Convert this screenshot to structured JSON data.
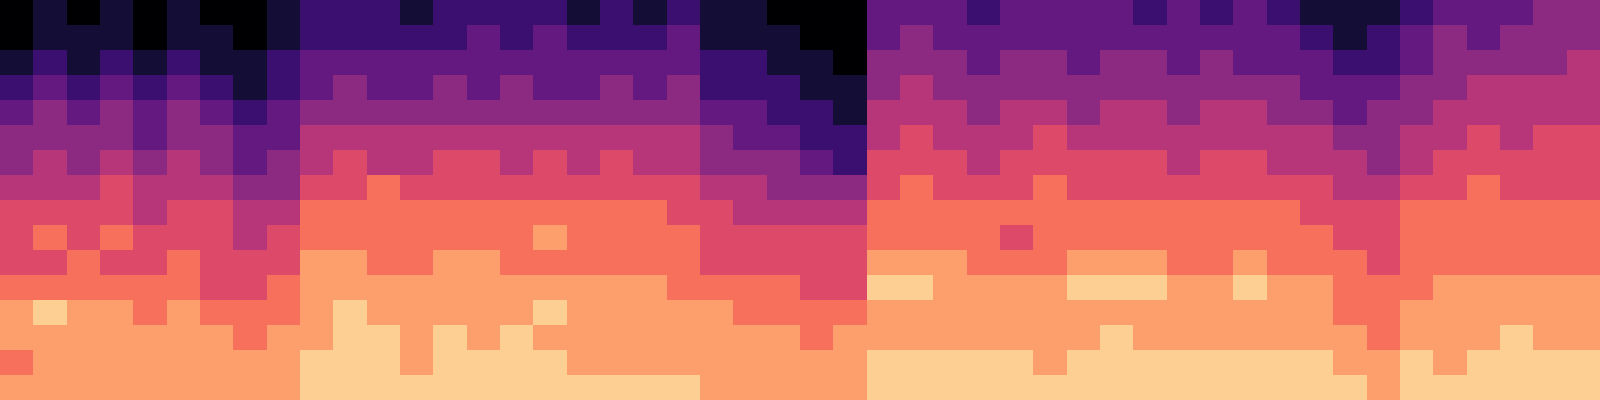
{
  "chart_data": {
    "type": "heatmap",
    "color": "magma",
    "tick_labels": false,
    "clim": [
      0,
      10
    ],
    "cells": [
      [
        0,
        1,
        0,
        1,
        0,
        1,
        0,
        0,
        1,
        2,
        2,
        2,
        1,
        2,
        2,
        2,
        2,
        1,
        2,
        1,
        2,
        1,
        1,
        0,
        0,
        0,
        3,
        3,
        3,
        2,
        3,
        3,
        3,
        3,
        2,
        3,
        2,
        3,
        2,
        1,
        1,
        1,
        2,
        3,
        3,
        3,
        4,
        4
      ],
      [
        0,
        1,
        1,
        1,
        0,
        1,
        1,
        0,
        1,
        2,
        2,
        2,
        2,
        2,
        3,
        2,
        3,
        2,
        2,
        2,
        3,
        1,
        1,
        1,
        0,
        0,
        3,
        4,
        3,
        3,
        3,
        3,
        3,
        3,
        3,
        3,
        3,
        3,
        3,
        2,
        1,
        2,
        3,
        4,
        3,
        4,
        4,
        4
      ],
      [
        1,
        2,
        1,
        2,
        1,
        2,
        1,
        1,
        2,
        3,
        3,
        3,
        3,
        3,
        3,
        3,
        3,
        3,
        3,
        3,
        3,
        2,
        2,
        1,
        1,
        0,
        4,
        4,
        4,
        3,
        4,
        4,
        3,
        4,
        4,
        3,
        4,
        3,
        3,
        3,
        2,
        2,
        3,
        4,
        4,
        4,
        4,
        5
      ],
      [
        2,
        3,
        2,
        3,
        2,
        3,
        2,
        1,
        2,
        3,
        4,
        3,
        3,
        4,
        3,
        4,
        3,
        3,
        4,
        3,
        4,
        2,
        2,
        2,
        1,
        1,
        4,
        5,
        4,
        4,
        4,
        4,
        4,
        4,
        4,
        4,
        4,
        4,
        4,
        3,
        3,
        3,
        4,
        4,
        5,
        5,
        5,
        5
      ],
      [
        3,
        4,
        3,
        4,
        3,
        4,
        3,
        2,
        3,
        4,
        4,
        4,
        4,
        4,
        4,
        4,
        4,
        4,
        4,
        4,
        4,
        3,
        3,
        2,
        2,
        1,
        5,
        5,
        5,
        4,
        5,
        5,
        4,
        5,
        5,
        4,
        5,
        5,
        4,
        4,
        3,
        4,
        4,
        5,
        5,
        5,
        5,
        5
      ],
      [
        4,
        4,
        4,
        4,
        3,
        4,
        4,
        3,
        3,
        5,
        5,
        5,
        5,
        5,
        5,
        5,
        5,
        5,
        5,
        5,
        5,
        4,
        3,
        3,
        2,
        2,
        5,
        6,
        5,
        5,
        5,
        6,
        5,
        5,
        5,
        5,
        5,
        5,
        5,
        5,
        4,
        4,
        5,
        5,
        6,
        5,
        6,
        6
      ],
      [
        4,
        5,
        4,
        5,
        4,
        5,
        4,
        3,
        4,
        5,
        6,
        5,
        5,
        6,
        6,
        5,
        6,
        5,
        6,
        5,
        5,
        4,
        4,
        4,
        3,
        2,
        6,
        6,
        6,
        5,
        6,
        6,
        6,
        6,
        6,
        5,
        6,
        6,
        5,
        5,
        5,
        4,
        5,
        6,
        6,
        6,
        6,
        6
      ],
      [
        5,
        5,
        5,
        6,
        5,
        5,
        5,
        4,
        4,
        6,
        6,
        7,
        6,
        6,
        6,
        6,
        6,
        6,
        6,
        6,
        6,
        5,
        5,
        4,
        4,
        4,
        6,
        7,
        6,
        6,
        6,
        7,
        6,
        6,
        6,
        6,
        6,
        6,
        6,
        6,
        5,
        5,
        6,
        6,
        7,
        6,
        6,
        6
      ],
      [
        6,
        6,
        6,
        6,
        5,
        6,
        6,
        5,
        5,
        7,
        7,
        7,
        7,
        7,
        7,
        7,
        7,
        7,
        7,
        7,
        6,
        6,
        5,
        5,
        5,
        5,
        7,
        7,
        7,
        7,
        7,
        7,
        7,
        7,
        7,
        7,
        7,
        7,
        7,
        6,
        6,
        6,
        7,
        7,
        7,
        7,
        7,
        7
      ],
      [
        6,
        7,
        6,
        7,
        6,
        6,
        6,
        5,
        6,
        7,
        7,
        7,
        7,
        7,
        7,
        7,
        8,
        7,
        7,
        7,
        7,
        6,
        6,
        6,
        6,
        6,
        7,
        7,
        7,
        7,
        6,
        7,
        7,
        7,
        7,
        7,
        7,
        7,
        7,
        7,
        6,
        6,
        7,
        7,
        7,
        7,
        7,
        7
      ],
      [
        6,
        6,
        7,
        6,
        6,
        7,
        6,
        6,
        6,
        8,
        8,
        7,
        7,
        8,
        8,
        7,
        7,
        7,
        7,
        7,
        7,
        6,
        6,
        6,
        6,
        6,
        8,
        8,
        8,
        7,
        7,
        7,
        8,
        8,
        8,
        7,
        7,
        8,
        7,
        7,
        7,
        6,
        7,
        7,
        7,
        7,
        7,
        7
      ],
      [
        7,
        7,
        7,
        7,
        7,
        7,
        6,
        6,
        7,
        8,
        8,
        8,
        8,
        8,
        8,
        8,
        8,
        8,
        8,
        8,
        7,
        7,
        7,
        7,
        6,
        6,
        9,
        9,
        8,
        8,
        8,
        8,
        9,
        9,
        9,
        8,
        8,
        9,
        8,
        8,
        7,
        7,
        7,
        8,
        8,
        8,
        8,
        8
      ],
      [
        8,
        9,
        8,
        8,
        7,
        8,
        7,
        7,
        7,
        8,
        9,
        8,
        8,
        8,
        8,
        8,
        9,
        8,
        8,
        8,
        8,
        8,
        7,
        7,
        7,
        7,
        8,
        8,
        8,
        8,
        8,
        8,
        8,
        8,
        8,
        8,
        8,
        8,
        8,
        8,
        7,
        7,
        8,
        8,
        8,
        8,
        8,
        8
      ],
      [
        8,
        8,
        8,
        8,
        8,
        8,
        8,
        7,
        8,
        8,
        9,
        9,
        8,
        9,
        8,
        9,
        8,
        8,
        8,
        8,
        8,
        8,
        8,
        8,
        7,
        8,
        8,
        8,
        8,
        8,
        8,
        8,
        8,
        9,
        8,
        8,
        8,
        8,
        8,
        8,
        8,
        7,
        8,
        8,
        8,
        9,
        8,
        8
      ],
      [
        7,
        8,
        8,
        8,
        8,
        8,
        8,
        8,
        8,
        9,
        9,
        9,
        8,
        9,
        9,
        9,
        9,
        8,
        8,
        8,
        8,
        8,
        8,
        8,
        8,
        8,
        9,
        9,
        9,
        9,
        9,
        8,
        9,
        9,
        9,
        9,
        9,
        9,
        9,
        9,
        8,
        8,
        9,
        8,
        9,
        9,
        9,
        9
      ],
      [
        8,
        8,
        8,
        8,
        8,
        8,
        8,
        8,
        8,
        9,
        9,
        9,
        9,
        9,
        9,
        9,
        9,
        9,
        9,
        9,
        9,
        8,
        8,
        8,
        8,
        8,
        9,
        9,
        9,
        9,
        9,
        9,
        9,
        9,
        9,
        9,
        9,
        9,
        9,
        9,
        9,
        8,
        9,
        9,
        9,
        9,
        9,
        9
      ]
    ]
  }
}
